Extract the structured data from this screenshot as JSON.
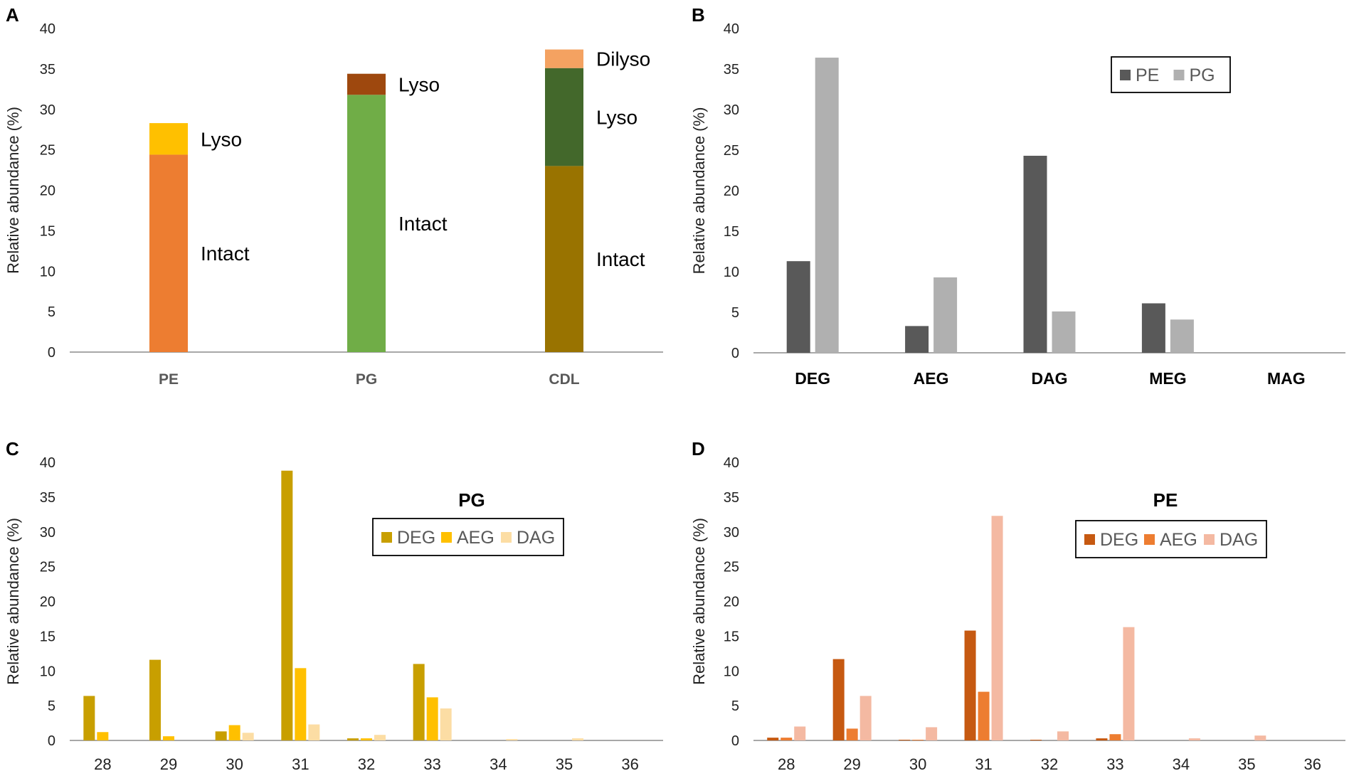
{
  "chart_data": [
    {
      "panel": "A",
      "type": "bar",
      "stacked": true,
      "ylabel": "Relative abundance (%)",
      "ylim": [
        0,
        40
      ],
      "yticks": [
        0,
        5,
        10,
        15,
        20,
        25,
        30,
        35,
        40
      ],
      "categories": [
        "PE",
        "PG",
        "CDL"
      ],
      "stacks": [
        {
          "category": "PE",
          "segments": [
            {
              "name": "Intact",
              "value": 24.4,
              "color": "#ED7D31"
            },
            {
              "name": "Lyso",
              "value": 3.9,
              "color": "#FFC000"
            }
          ]
        },
        {
          "category": "PG",
          "segments": [
            {
              "name": "Intact",
              "value": 31.8,
              "color": "#70AD47"
            },
            {
              "name": "Lyso",
              "value": 2.6,
              "color": "#9E480E"
            }
          ]
        },
        {
          "category": "CDL",
          "segments": [
            {
              "name": "Intact",
              "value": 23.0,
              "color": "#997300"
            },
            {
              "name": "Lyso",
              "value": 12.1,
              "color": "#43682B"
            },
            {
              "name": "Dilyso",
              "value": 2.3,
              "color": "#F4A261"
            }
          ]
        }
      ]
    },
    {
      "panel": "B",
      "type": "bar",
      "ylabel": "Relative abundance (%)",
      "ylim": [
        0,
        40
      ],
      "yticks": [
        0,
        5,
        10,
        15,
        20,
        25,
        30,
        35,
        40
      ],
      "categories": [
        "DEG",
        "AEG",
        "DAG",
        "MEG",
        "MAG"
      ],
      "legend_position": "top-right",
      "series": [
        {
          "name": "PE",
          "color": "#595959",
          "values": [
            11.3,
            3.3,
            24.3,
            6.1,
            0
          ]
        },
        {
          "name": "PG",
          "color": "#B0B0B0",
          "values": [
            36.4,
            9.3,
            5.1,
            4.1,
            0
          ]
        }
      ]
    },
    {
      "panel": "C",
      "type": "bar",
      "title": "PG",
      "ylabel": "Relative abundance (%)",
      "ylim": [
        0,
        40
      ],
      "yticks": [
        0,
        5,
        10,
        15,
        20,
        25,
        30,
        35,
        40
      ],
      "categories": [
        "28",
        "29",
        "30",
        "31",
        "32",
        "33",
        "34",
        "35",
        "36"
      ],
      "legend_position": "top-right",
      "series": [
        {
          "name": "DEG",
          "color": "#C89F00",
          "values": [
            6.4,
            11.6,
            1.3,
            38.8,
            0.3,
            11.0,
            0,
            0,
            0
          ]
        },
        {
          "name": "AEG",
          "color": "#FFC000",
          "values": [
            1.2,
            0.6,
            2.2,
            10.4,
            0.3,
            6.2,
            0,
            0,
            0
          ]
        },
        {
          "name": "DAG",
          "color": "#FCDDA4",
          "values": [
            0,
            0,
            1.1,
            2.3,
            0.8,
            4.6,
            0.2,
            0.3,
            0
          ]
        }
      ]
    },
    {
      "panel": "D",
      "type": "bar",
      "title": "PE",
      "ylabel": "Relative abundance (%)",
      "ylim": [
        0,
        40
      ],
      "yticks": [
        0,
        5,
        10,
        15,
        20,
        25,
        30,
        35,
        40
      ],
      "categories": [
        "28",
        "29",
        "30",
        "31",
        "32",
        "33",
        "34",
        "35",
        "36"
      ],
      "legend_position": "top-right",
      "series": [
        {
          "name": "DEG",
          "color": "#C65911",
          "values": [
            0.4,
            11.7,
            0.1,
            15.8,
            0.1,
            0.3,
            0,
            0,
            0
          ]
        },
        {
          "name": "AEG",
          "color": "#ED7D31",
          "values": [
            0.4,
            1.7,
            0.1,
            7.0,
            0,
            0.9,
            0,
            0,
            0
          ]
        },
        {
          "name": "DAG",
          "color": "#F4B9A2",
          "values": [
            2.0,
            6.4,
            1.9,
            32.3,
            1.3,
            16.3,
            0.3,
            0.7,
            0
          ]
        }
      ]
    }
  ]
}
